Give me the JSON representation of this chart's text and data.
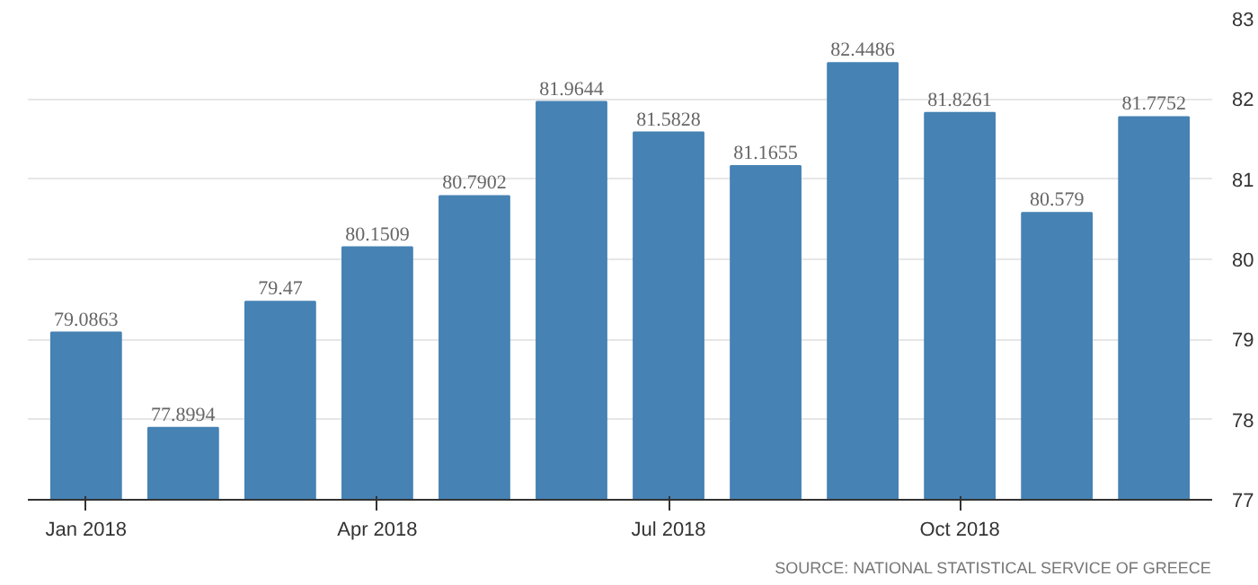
{
  "chart_data": {
    "type": "bar",
    "categories": [
      "Jan 2018",
      null,
      null,
      "Apr 2018",
      null,
      null,
      "Jul 2018",
      null,
      null,
      "Oct 2018",
      null,
      null
    ],
    "values": [
      79.0863,
      77.8994,
      79.47,
      80.1509,
      80.7902,
      81.9644,
      81.5828,
      81.1655,
      82.4486,
      81.8261,
      80.579,
      81.7752
    ],
    "color": "#4682b4",
    "ylim": [
      77,
      83
    ],
    "yticks": [
      77,
      78,
      79,
      80,
      81,
      82,
      83
    ],
    "grid": "y",
    "data_labels": true,
    "annotations": [
      "SOURCE: NATIONAL STATISTICAL SERVICE OF GREECE"
    ]
  }
}
